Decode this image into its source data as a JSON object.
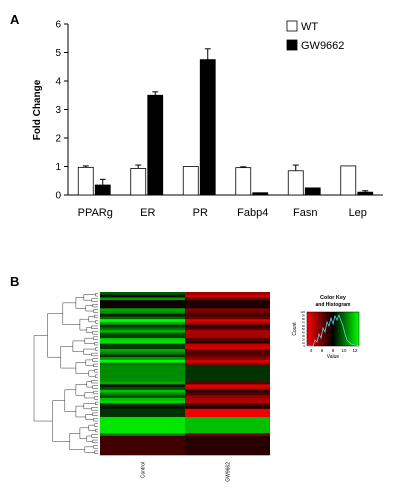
{
  "figure": {
    "panel_a_letter": "A",
    "panel_b_letter": "B"
  },
  "chart_data": [
    {
      "type": "bar",
      "title": "",
      "xlabel": "",
      "ylabel": "Fold Change",
      "ylim": [
        0,
        6
      ],
      "yticks": [
        "0",
        "1",
        "2",
        "3",
        "4",
        "5",
        "6"
      ],
      "categories": [
        "PPARg",
        "ER",
        "PR",
        "Fabp4",
        "Fasn",
        "Lep"
      ],
      "series": [
        {
          "name": "WT",
          "color": "#ffffff",
          "values": [
            0.97,
            0.93,
            1.0,
            0.96,
            0.85,
            1.02
          ],
          "errors": [
            0.05,
            0.12,
            0.0,
            0.03,
            0.2,
            0.0
          ]
        },
        {
          "name": "GW9662",
          "color": "#000000",
          "values": [
            0.35,
            3.5,
            4.75,
            0.08,
            0.25,
            0.1
          ],
          "errors": [
            0.2,
            0.12,
            0.38,
            0.0,
            0.0,
            0.05
          ]
        }
      ],
      "legend_position": "top-right",
      "grid": false
    },
    {
      "type": "heatmap",
      "columns": [
        "Control",
        "GW9662"
      ],
      "color_scale": [
        "#ff0000",
        "#000000",
        "#00ff00"
      ],
      "color_key": {
        "title_line1": "Color Key",
        "title_line2": "and Histogram",
        "xlabel": "Value",
        "ylabel": "Count",
        "xticks": [
          "4",
          "6",
          "8",
          "10",
          "12"
        ],
        "yticks": [
          "0",
          "10",
          "20",
          "30",
          "40",
          "50",
          "60",
          "70",
          "80",
          "90",
          "120"
        ]
      }
    }
  ]
}
